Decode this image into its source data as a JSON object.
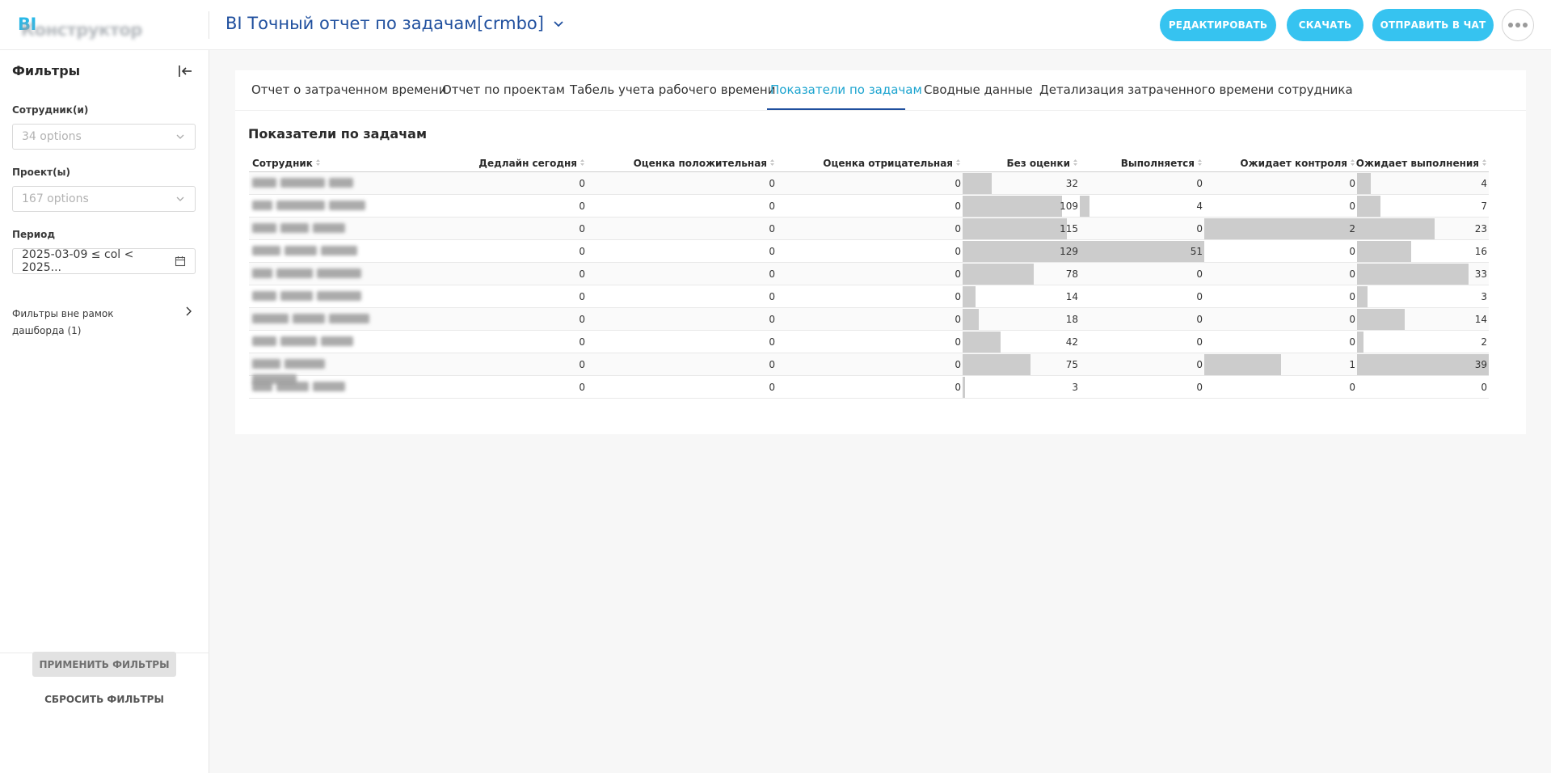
{
  "header": {
    "logo_bi": "BI",
    "logo_name": "Конструктор",
    "dashboard_title": "BI Точный отчет по задачам[crmbo]",
    "buttons": {
      "edit": "РЕДАКТИРОВАТЬ",
      "download": "СКАЧАТЬ",
      "send": "ОТПРАВИТЬ В ЧАТ"
    },
    "more_icon": "more-horizontal-icon"
  },
  "sidebar": {
    "title": "Фильтры",
    "employees_label": "Сотрудник(и)",
    "employees_placeholder": "34 options",
    "projects_label": "Проект(ы)",
    "projects_placeholder": "167 options",
    "period_label": "Период",
    "period_value": "2025-03-09 ≤ col < 2025...",
    "outside_filters": "Фильтры вне рамок дашборда (1)",
    "apply": "ПРИМЕНИТЬ ФИЛЬТРЫ",
    "reset": "СБРОСИТЬ ФИЛЬТРЫ"
  },
  "tabs": [
    {
      "label": "Отчет о затраченном времени",
      "active": false
    },
    {
      "label": "Отчет по проектам",
      "active": false
    },
    {
      "label": "Табель учета рабочего времени",
      "active": false
    },
    {
      "label": "Показатели по задачам",
      "active": true
    },
    {
      "label": "Сводные данные",
      "active": false
    },
    {
      "label": "Детализация затраченного времени сотрудника",
      "active": false
    }
  ],
  "table": {
    "title": "Показатели по задачам",
    "bar_color": "#cccccc",
    "columns": [
      "Сотрудник",
      "Дедлайн сегодня",
      "Оценка положительная",
      "Оценка отрицательная",
      "Без оценки",
      "Выполняется",
      "Ожидает контроля",
      "Ожидает выполнения"
    ],
    "rows": [
      [
        0,
        0,
        0,
        32,
        0,
        0,
        4
      ],
      [
        0,
        0,
        0,
        109,
        4,
        0,
        7
      ],
      [
        0,
        0,
        0,
        115,
        0,
        2,
        23
      ],
      [
        0,
        0,
        0,
        129,
        51,
        0,
        16
      ],
      [
        0,
        0,
        0,
        78,
        0,
        0,
        33
      ],
      [
        0,
        0,
        0,
        14,
        0,
        0,
        3
      ],
      [
        0,
        0,
        0,
        18,
        0,
        0,
        14
      ],
      [
        0,
        0,
        0,
        42,
        0,
        0,
        2
      ],
      [
        0,
        0,
        0,
        75,
        0,
        1,
        39
      ],
      [
        0,
        0,
        0,
        3,
        0,
        0,
        0
      ]
    ]
  }
}
